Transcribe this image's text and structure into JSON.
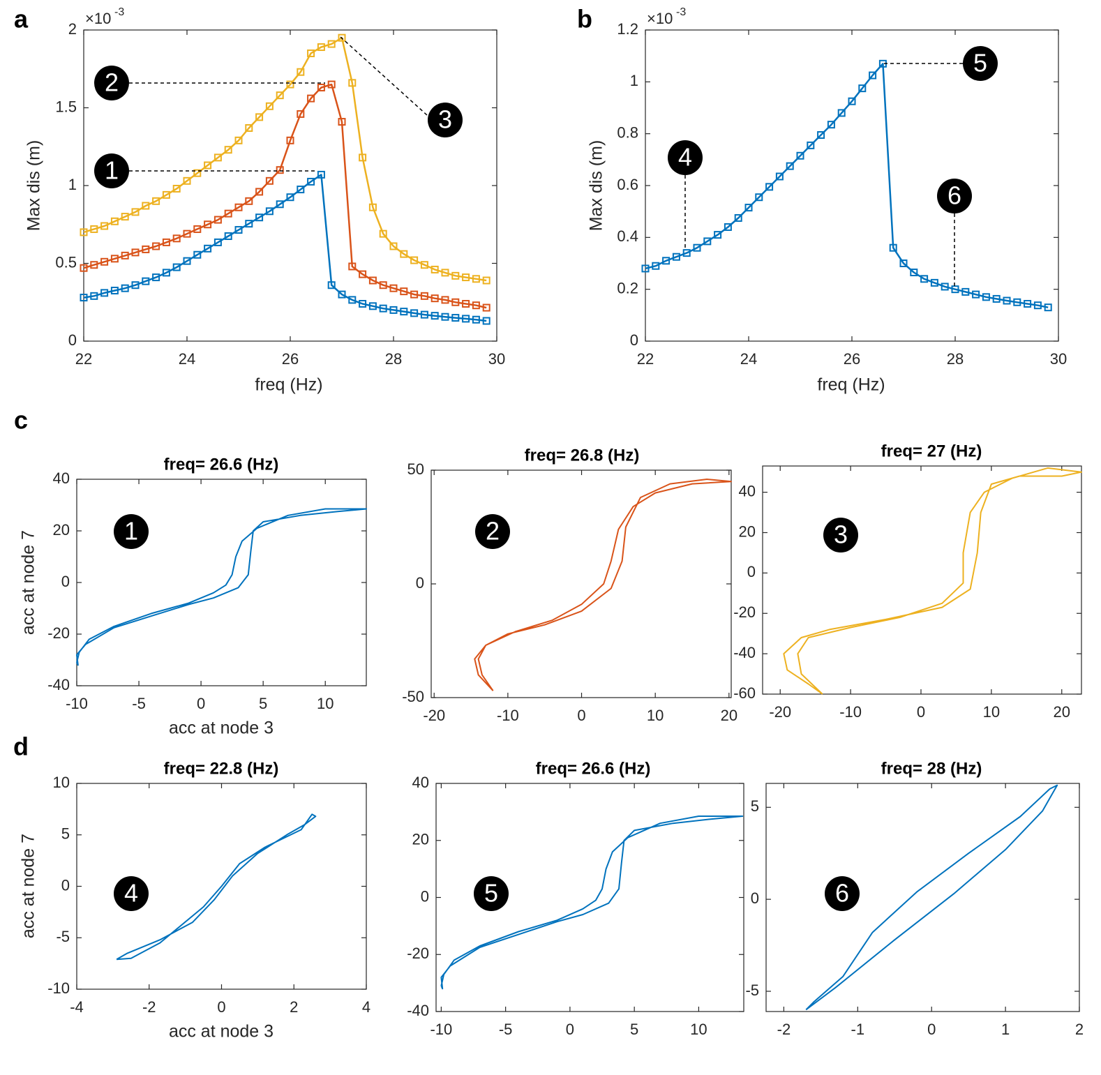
{
  "chart_data": [
    {
      "type": "line",
      "panel": "a",
      "x_label": "freq (Hz)",
      "y_label": "Max dis (m)",
      "y_scale_label": {
        "base": "×10",
        "exponent": "-3"
      },
      "marker": "square",
      "xlim": [
        22,
        30
      ],
      "ylim": [
        0,
        2
      ],
      "xticks": [
        22,
        24,
        26,
        28,
        30
      ],
      "yticks": [
        0,
        0.5,
        1,
        1.5,
        2
      ],
      "annotations": [
        "1",
        "2",
        "3"
      ],
      "x": [
        22,
        22.2,
        22.4,
        22.6,
        22.8,
        23,
        23.2,
        23.4,
        23.6,
        23.8,
        24,
        24.2,
        24.4,
        24.6,
        24.8,
        25,
        25.2,
        25.4,
        25.6,
        25.8,
        26,
        26.2,
        26.4,
        26.6,
        26.8,
        27,
        27.2,
        27.4,
        27.6,
        27.8,
        28,
        28.2,
        28.4,
        28.6,
        28.8,
        29,
        29.2,
        29.4,
        29.6,
        29.8
      ],
      "series": [
        {
          "color": "#0072bd",
          "values": [
            0.28,
            0.29,
            0.31,
            0.325,
            0.34,
            0.36,
            0.385,
            0.41,
            0.44,
            0.475,
            0.515,
            0.555,
            0.595,
            0.635,
            0.675,
            0.715,
            0.755,
            0.795,
            0.835,
            0.88,
            0.925,
            0.975,
            1.025,
            1.07,
            0.36,
            0.3,
            0.265,
            0.24,
            0.225,
            0.21,
            0.2,
            0.19,
            0.18,
            0.17,
            0.163,
            0.156,
            0.15,
            0.144,
            0.138,
            0.13
          ]
        },
        {
          "color": "#d95319",
          "values": [
            0.47,
            0.49,
            0.51,
            0.53,
            0.55,
            0.57,
            0.59,
            0.61,
            0.635,
            0.66,
            0.69,
            0.72,
            0.75,
            0.78,
            0.82,
            0.86,
            0.9,
            0.96,
            1.03,
            1.1,
            1.29,
            1.46,
            1.56,
            1.63,
            1.65,
            1.41,
            0.48,
            0.43,
            0.39,
            0.36,
            0.34,
            0.32,
            0.3,
            0.29,
            0.275,
            0.265,
            0.25,
            0.24,
            0.23,
            0.215
          ]
        },
        {
          "color": "#edb120",
          "values": [
            0.7,
            0.72,
            0.74,
            0.77,
            0.8,
            0.83,
            0.87,
            0.9,
            0.94,
            0.98,
            1.03,
            1.08,
            1.13,
            1.18,
            1.23,
            1.29,
            1.37,
            1.44,
            1.51,
            1.58,
            1.65,
            1.73,
            1.85,
            1.89,
            1.91,
            1.95,
            1.66,
            1.18,
            0.86,
            0.69,
            0.61,
            0.56,
            0.52,
            0.49,
            0.46,
            0.44,
            0.42,
            0.41,
            0.4,
            0.39
          ]
        }
      ]
    },
    {
      "type": "line",
      "panel": "b",
      "x_label": "freq (Hz)",
      "y_label": "Max dis (m)",
      "y_scale_label": {
        "base": "×10",
        "exponent": "-3"
      },
      "marker": "square",
      "xlim": [
        22,
        30
      ],
      "ylim": [
        0,
        1.2
      ],
      "xticks": [
        22,
        24,
        26,
        28,
        30
      ],
      "yticks": [
        0,
        0.2,
        0.4,
        0.6,
        0.8,
        1,
        1.2
      ],
      "annotations": [
        "4",
        "5",
        "6"
      ],
      "x": [
        22,
        22.2,
        22.4,
        22.6,
        22.8,
        23,
        23.2,
        23.4,
        23.6,
        23.8,
        24,
        24.2,
        24.4,
        24.6,
        24.8,
        25,
        25.2,
        25.4,
        25.6,
        25.8,
        26,
        26.2,
        26.4,
        26.6,
        26.8,
        27,
        27.2,
        27.4,
        27.6,
        27.8,
        28,
        28.2,
        28.4,
        28.6,
        28.8,
        29,
        29.2,
        29.4,
        29.6,
        29.8
      ],
      "series": [
        {
          "color": "#0072bd",
          "values": [
            0.28,
            0.29,
            0.31,
            0.325,
            0.34,
            0.36,
            0.385,
            0.41,
            0.44,
            0.475,
            0.515,
            0.555,
            0.595,
            0.635,
            0.675,
            0.715,
            0.755,
            0.795,
            0.835,
            0.88,
            0.925,
            0.975,
            1.025,
            1.07,
            0.36,
            0.3,
            0.265,
            0.24,
            0.225,
            0.21,
            0.2,
            0.19,
            0.18,
            0.17,
            0.163,
            0.156,
            0.15,
            0.144,
            0.138,
            0.13
          ]
        }
      ]
    },
    {
      "type": "line",
      "panel": "c",
      "title": "freq= 26.6 (Hz)",
      "x_label": "acc at node 3",
      "y_label": "acc  at node 7",
      "xlim": [
        -10,
        13.3
      ],
      "ylim": [
        -40,
        40
      ],
      "xticks": [
        -10,
        -5,
        0,
        5,
        10
      ],
      "yticks": [
        -40,
        -20,
        0,
        20,
        40
      ],
      "annotations": [
        "1"
      ],
      "series": [
        {
          "color": "#0072bd",
          "x": [
            -10,
            -9.8,
            -9,
            -7,
            -4,
            -1,
            1,
            2,
            2.5,
            2.8,
            3.3,
            4.5,
            7,
            10,
            13.3,
            11,
            8,
            5,
            4.2,
            4,
            3.8,
            3,
            1,
            -1,
            -4,
            -7,
            -9.3,
            -10,
            -9.9,
            -10
          ],
          "values": [
            -31,
            -27,
            -22,
            -17,
            -12,
            -8,
            -4,
            -1,
            3,
            10,
            16,
            21,
            26,
            28.5,
            28.5,
            27.5,
            26,
            23.5,
            20,
            12,
            3,
            -2,
            -6,
            -8.5,
            -13,
            -17.5,
            -24,
            -28,
            -32,
            -31
          ]
        }
      ]
    },
    {
      "type": "line",
      "title": "freq= 26.8 (Hz)",
      "xlim": [
        -20.4,
        20.3
      ],
      "ylim": [
        -50,
        50
      ],
      "xticks": [
        -20,
        -10,
        0,
        10,
        20
      ],
      "yticks": [
        -50,
        0,
        50
      ],
      "annotations": [
        "2"
      ],
      "series": [
        {
          "color": "#d95319",
          "x": [
            -12,
            -13.5,
            -14,
            -13,
            -9,
            -4,
            0,
            3,
            4,
            5,
            7,
            10,
            15,
            20.3,
            17,
            12,
            8,
            6,
            5.5,
            4,
            0,
            -5,
            -10,
            -13,
            -14.5,
            -14,
            -12
          ],
          "values": [
            -47,
            -40,
            -33,
            -27,
            -21,
            -16,
            -9,
            0,
            10,
            24,
            34,
            40,
            44,
            45,
            46,
            44,
            38,
            25,
            10,
            -2,
            -12,
            -18,
            -22,
            -27,
            -33,
            -40,
            -47
          ]
        }
      ]
    },
    {
      "type": "line",
      "title": "freq= 27 (Hz)",
      "xlim": [
        -22.5,
        22.8
      ],
      "ylim": [
        -60,
        53
      ],
      "xticks": [
        -20,
        -10,
        0,
        10,
        20
      ],
      "yticks": [
        -60,
        -40,
        -20,
        0,
        20,
        40
      ],
      "annotations": [
        "3"
      ],
      "series": [
        {
          "color": "#edb120",
          "x": [
            -14,
            -17,
            -17.5,
            -16,
            -10,
            -3,
            3,
            6,
            6,
            7,
            9,
            13,
            18,
            22.8,
            20,
            14,
            10,
            8.5,
            8,
            7,
            3,
            -5,
            -13,
            -17,
            -19.5,
            -19,
            -16,
            -14
          ],
          "values": [
            -60,
            -50,
            -40,
            -32,
            -27,
            -22,
            -15,
            -5,
            10,
            30,
            40,
            47,
            52,
            50,
            48,
            48,
            44,
            30,
            10,
            -8,
            -17,
            -23,
            -28,
            -32,
            -40,
            -48,
            -55,
            -60
          ]
        }
      ]
    },
    {
      "type": "line",
      "panel": "d",
      "title": "freq= 22.8 (Hz)",
      "x_label": "acc at node 3",
      "y_label": "acc  at node 7",
      "xlim": [
        -4,
        4
      ],
      "ylim": [
        -10,
        10
      ],
      "xticks": [
        -4,
        -2,
        0,
        2,
        4
      ],
      "yticks": [
        -10,
        -5,
        0,
        5,
        10
      ],
      "annotations": [
        "4"
      ],
      "series": [
        {
          "color": "#0072bd",
          "x": [
            -2.9,
            -2.5,
            -1.7,
            -0.5,
            0,
            0.5,
            1.2,
            2.2,
            2.5,
            2.6,
            2.3,
            1.8,
            1,
            0.3,
            -0.2,
            -0.8,
            -1.7,
            -2.6,
            -2.9
          ],
          "values": [
            -7.1,
            -7,
            -5.5,
            -2,
            0,
            2.2,
            3.8,
            5.5,
            7,
            6.8,
            6,
            5,
            3.2,
            1,
            -1.3,
            -3.5,
            -5.2,
            -6.5,
            -7.1
          ]
        }
      ]
    },
    {
      "type": "line",
      "title": "freq= 26.6 (Hz)",
      "xlim": [
        -10.4,
        13.5
      ],
      "ylim": [
        -40,
        40
      ],
      "xticks": [
        -10,
        -5,
        0,
        5,
        10
      ],
      "yticks": [
        -40,
        -20,
        0,
        20,
        40
      ],
      "annotations": [
        "5"
      ],
      "series": [
        {
          "color": "#0072bd",
          "x": [
            -10,
            -9.8,
            -9,
            -7,
            -4,
            -1,
            1,
            2,
            2.5,
            2.8,
            3.3,
            4.5,
            7,
            10,
            13.4,
            11,
            8,
            5,
            4.2,
            4,
            3.8,
            3,
            1,
            -1,
            -4,
            -7,
            -9.3,
            -10,
            -9.9,
            -10
          ],
          "values": [
            -31,
            -27,
            -22,
            -17,
            -12,
            -8,
            -4,
            -1,
            3,
            10,
            16,
            21,
            26,
            28.5,
            28.5,
            27.5,
            26,
            23.5,
            20,
            12,
            3,
            -2,
            -6,
            -8.5,
            -13,
            -17.5,
            -24,
            -28,
            -32,
            -31
          ]
        }
      ]
    },
    {
      "type": "line",
      "title": "freq= 28 (Hz)",
      "xlim": [
        -2.24,
        2
      ],
      "ylim": [
        -6.1,
        6.3
      ],
      "xticks": [
        -2,
        -1,
        0,
        1,
        2
      ],
      "yticks": [
        -5,
        0,
        5
      ],
      "annotations": [
        "6"
      ],
      "series": [
        {
          "color": "#0072bd",
          "x": [
            -1.7,
            -1.3,
            -0.5,
            0.3,
            1,
            1.5,
            1.7,
            1.6,
            1.2,
            0.5,
            -0.2,
            -0.8,
            -1.2,
            -1.6,
            -1.7
          ],
          "values": [
            -6,
            -4.8,
            -2.2,
            0.3,
            2.7,
            4.8,
            6.2,
            6,
            4.5,
            2.5,
            0.4,
            -1.8,
            -4.2,
            -5.6,
            -6
          ]
        }
      ]
    }
  ]
}
